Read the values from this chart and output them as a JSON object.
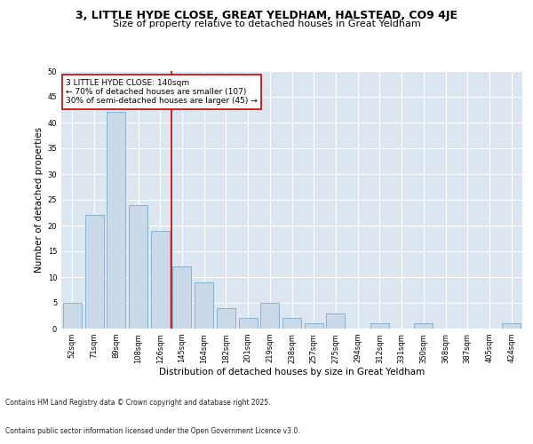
{
  "title_line1": "3, LITTLE HYDE CLOSE, GREAT YELDHAM, HALSTEAD, CO9 4JE",
  "title_line2": "Size of property relative to detached houses in Great Yeldham",
  "xlabel": "Distribution of detached houses by size in Great Yeldham",
  "ylabel": "Number of detached properties",
  "categories": [
    "52sqm",
    "71sqm",
    "89sqm",
    "108sqm",
    "126sqm",
    "145sqm",
    "164sqm",
    "182sqm",
    "201sqm",
    "219sqm",
    "238sqm",
    "257sqm",
    "275sqm",
    "294sqm",
    "312sqm",
    "331sqm",
    "350sqm",
    "368sqm",
    "387sqm",
    "405sqm",
    "424sqm"
  ],
  "values": [
    5,
    22,
    42,
    24,
    19,
    12,
    9,
    4,
    2,
    5,
    2,
    1,
    3,
    0,
    1,
    0,
    1,
    0,
    0,
    0,
    1
  ],
  "bar_color": "#c9d9e8",
  "bar_edge_color": "#7aaac8",
  "background_color": "#dce6f0",
  "grid_color": "#ffffff",
  "vline_x": 4.5,
  "vline_color": "#cc0000",
  "annotation_text": "3 LITTLE HYDE CLOSE: 140sqm\n← 70% of detached houses are smaller (107)\n30% of semi-detached houses are larger (45) →",
  "annotation_box_color": "#ffffff",
  "annotation_box_edge_color": "#cc0000",
  "ylim": [
    0,
    50
  ],
  "yticks": [
    0,
    5,
    10,
    15,
    20,
    25,
    30,
    35,
    40,
    45,
    50
  ],
  "footer_line1": "Contains HM Land Registry data © Crown copyright and database right 2025.",
  "footer_line2": "Contains public sector information licensed under the Open Government Licence v3.0.",
  "title_fontsize": 9,
  "subtitle_fontsize": 8,
  "axis_label_fontsize": 7.5,
  "tick_fontsize": 6,
  "annotation_fontsize": 6.5,
  "footer_fontsize": 5.5
}
